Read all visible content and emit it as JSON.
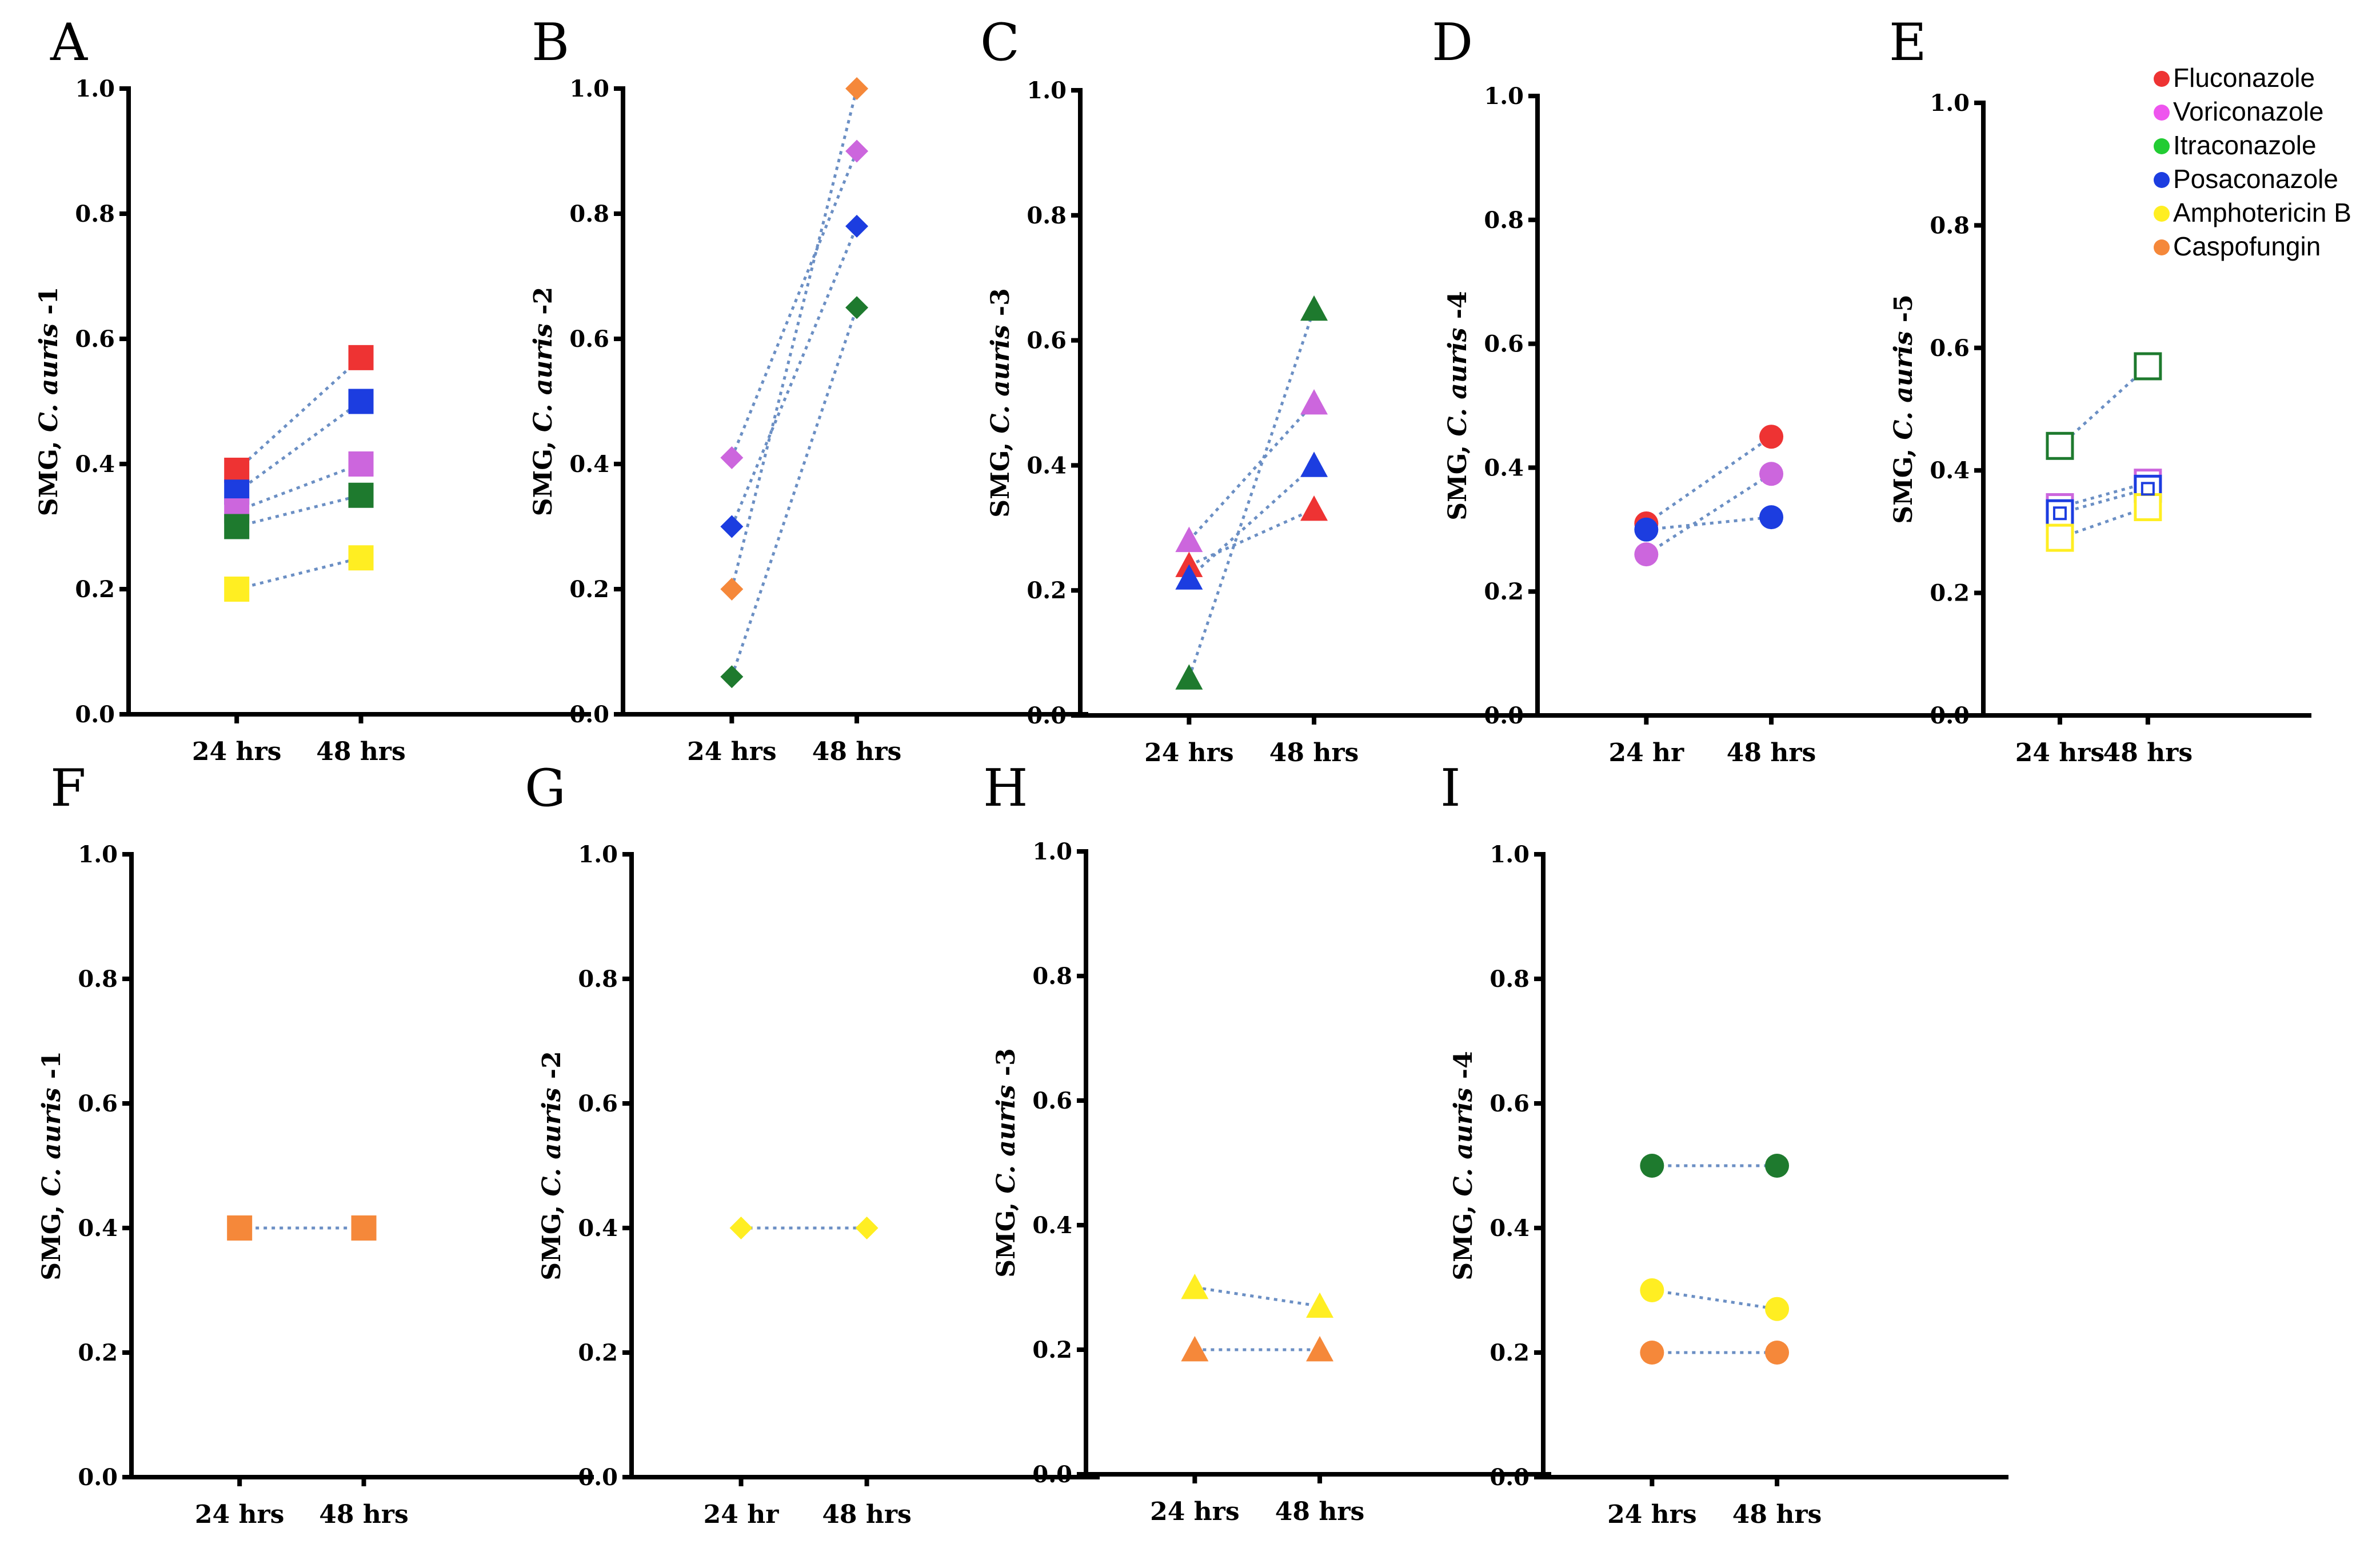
{
  "colors": {
    "Fluconazole": "#ee3333",
    "Voriconazole": "#cc66dd",
    "Itraconazole": "#1e7a2e",
    "Posaconazole": "#1c3de0",
    "Amphotericin B": "#ffee22",
    "Caspofungin": "#f5883a"
  },
  "legend": {
    "items": [
      {
        "label": "Fluconazole",
        "color": "#ee3333"
      },
      {
        "label": "Voriconazole",
        "color": "#ee55ee"
      },
      {
        "label": "Itraconazole",
        "color": "#22cc33"
      },
      {
        "label": "Posaconazole",
        "color": "#1c3de0"
      },
      {
        "label": "Amphotericin B",
        "color": "#ffee22"
      },
      {
        "label": "Caspofungin",
        "color": "#f5883a"
      }
    ]
  },
  "chart_data": [
    {
      "panel": "A",
      "type": "line",
      "ylabel_prefix": "SMG, ",
      "ylabel_italic": "C. auris",
      "ylabel_suffix": " -1",
      "categories": [
        "24 hrs",
        "48 hrs"
      ],
      "ylim": [
        0,
        1
      ],
      "yticks": [
        "0.0",
        "0.2",
        "0.4",
        "0.6",
        "0.8",
        "1.0"
      ],
      "marker": "square",
      "filled": true,
      "series": [
        {
          "name": "Fluconazole",
          "values": [
            0.39,
            0.57
          ]
        },
        {
          "name": "Posaconazole",
          "values": [
            0.355,
            0.5
          ]
        },
        {
          "name": "Voriconazole",
          "values": [
            0.325,
            0.4
          ]
        },
        {
          "name": "Itraconazole",
          "values": [
            0.3,
            0.35
          ]
        },
        {
          "name": "Amphotericin B",
          "values": [
            0.2,
            0.25
          ]
        }
      ]
    },
    {
      "panel": "B",
      "type": "line",
      "ylabel_prefix": "SMG, ",
      "ylabel_italic": "C. auris",
      "ylabel_suffix": " -2",
      "categories": [
        "24 hrs",
        "48 hrs"
      ],
      "ylim": [
        0,
        1
      ],
      "yticks": [
        "0.0",
        "0.2",
        "0.4",
        "0.6",
        "0.8",
        "1.0"
      ],
      "marker": "diamond",
      "filled": true,
      "series": [
        {
          "name": "Voriconazole",
          "values": [
            0.41,
            0.9
          ]
        },
        {
          "name": "Posaconazole",
          "values": [
            0.3,
            0.78
          ]
        },
        {
          "name": "Caspofungin",
          "values": [
            0.2,
            1.0
          ]
        },
        {
          "name": "Itraconazole",
          "values": [
            0.06,
            0.65
          ]
        }
      ]
    },
    {
      "panel": "C",
      "type": "line",
      "ylabel_prefix": "SMG, ",
      "ylabel_italic": "C. auris",
      "ylabel_suffix": " -3",
      "categories": [
        "24 hrs",
        "48 hrs"
      ],
      "ylim": [
        0,
        1
      ],
      "yticks": [
        "0.0",
        "0.2",
        "0.4",
        "0.6",
        "0.8",
        "1.0"
      ],
      "marker": "triangle",
      "filled": true,
      "series": [
        {
          "name": "Voriconazole",
          "values": [
            0.28,
            0.5
          ]
        },
        {
          "name": "Fluconazole",
          "values": [
            0.24,
            0.33
          ]
        },
        {
          "name": "Posaconazole",
          "values": [
            0.22,
            0.4
          ]
        },
        {
          "name": "Itraconazole",
          "values": [
            0.06,
            0.65
          ]
        }
      ]
    },
    {
      "panel": "D",
      "type": "line",
      "ylabel_prefix": "SMG, ",
      "ylabel_italic": "C. auris",
      "ylabel_suffix": " -4",
      "categories": [
        "24 hr",
        "48 hrs"
      ],
      "ylim": [
        0,
        1
      ],
      "yticks": [
        "0.0",
        "0.2",
        "0.4",
        "0.6",
        "0.8",
        "1.0"
      ],
      "marker": "circle",
      "filled": true,
      "series": [
        {
          "name": "Fluconazole",
          "values": [
            0.31,
            0.45
          ]
        },
        {
          "name": "Posaconazole",
          "values": [
            0.3,
            0.32
          ]
        },
        {
          "name": "Voriconazole",
          "values": [
            0.26,
            0.39
          ]
        }
      ]
    },
    {
      "panel": "E",
      "type": "line",
      "ylabel_prefix": "SMG, ",
      "ylabel_italic": "C. auris",
      "ylabel_suffix": " -5",
      "categories": [
        "24 hrs",
        "48 hrs"
      ],
      "ylim": [
        0,
        1
      ],
      "yticks": [
        "0.0",
        "0.2",
        "0.4",
        "0.6",
        "0.8",
        "1.0"
      ],
      "marker": "square",
      "filled": false,
      "series": [
        {
          "name": "Itraconazole",
          "values": [
            0.44,
            0.57
          ]
        },
        {
          "name": "Voriconazole",
          "values": [
            0.34,
            0.38
          ]
        },
        {
          "name": "Posaconazole",
          "values": [
            0.33,
            0.37
          ]
        },
        {
          "name": "Amphotericin B",
          "values": [
            0.29,
            0.34
          ]
        }
      ]
    },
    {
      "panel": "F",
      "type": "line",
      "ylabel_prefix": "SMG, ",
      "ylabel_italic": "C. auris",
      "ylabel_suffix": " -1",
      "categories": [
        "24 hrs",
        "48 hrs"
      ],
      "ylim": [
        0,
        1
      ],
      "yticks": [
        "0.0",
        "0.2",
        "0.4",
        "0.6",
        "0.8",
        "1.0"
      ],
      "marker": "square",
      "filled": true,
      "series": [
        {
          "name": "Caspofungin",
          "values": [
            0.4,
            0.4
          ]
        }
      ]
    },
    {
      "panel": "G",
      "type": "line",
      "ylabel_prefix": "SMG, ",
      "ylabel_italic": "C. auris",
      "ylabel_suffix": " -2",
      "categories": [
        "24 hr",
        "48 hrs"
      ],
      "ylim": [
        0,
        1
      ],
      "yticks": [
        "0.0",
        "0.2",
        "0.4",
        "0.6",
        "0.8",
        "1.0"
      ],
      "marker": "diamond",
      "filled": true,
      "series": [
        {
          "name": "Amphotericin B",
          "values": [
            0.4,
            0.4
          ]
        }
      ]
    },
    {
      "panel": "H",
      "type": "line",
      "ylabel_prefix": "SMG, ",
      "ylabel_italic": "C. auris",
      "ylabel_suffix": " -3",
      "categories": [
        "24 hrs",
        "48 hrs"
      ],
      "ylim": [
        0,
        1
      ],
      "yticks": [
        "0.0",
        "0.2",
        "0.4",
        "0.6",
        "0.8",
        "1.0"
      ],
      "marker": "triangle",
      "filled": true,
      "series": [
        {
          "name": "Amphotericin B",
          "values": [
            0.3,
            0.27
          ]
        },
        {
          "name": "Caspofungin",
          "values": [
            0.2,
            0.2
          ]
        }
      ]
    },
    {
      "panel": "I",
      "type": "line",
      "ylabel_prefix": "SMG, ",
      "ylabel_italic": "C. auris",
      "ylabel_suffix": " -4",
      "categories": [
        "24 hrs",
        "48 hrs"
      ],
      "ylim": [
        0,
        1
      ],
      "yticks": [
        "0.0",
        "0.2",
        "0.4",
        "0.6",
        "0.8",
        "1.0"
      ],
      "marker": "circle",
      "filled": true,
      "series": [
        {
          "name": "Itraconazole",
          "values": [
            0.5,
            0.5
          ]
        },
        {
          "name": "Amphotericin B",
          "values": [
            0.3,
            0.27
          ]
        },
        {
          "name": "Caspofungin",
          "values": [
            0.2,
            0.2
          ]
        }
      ]
    }
  ]
}
